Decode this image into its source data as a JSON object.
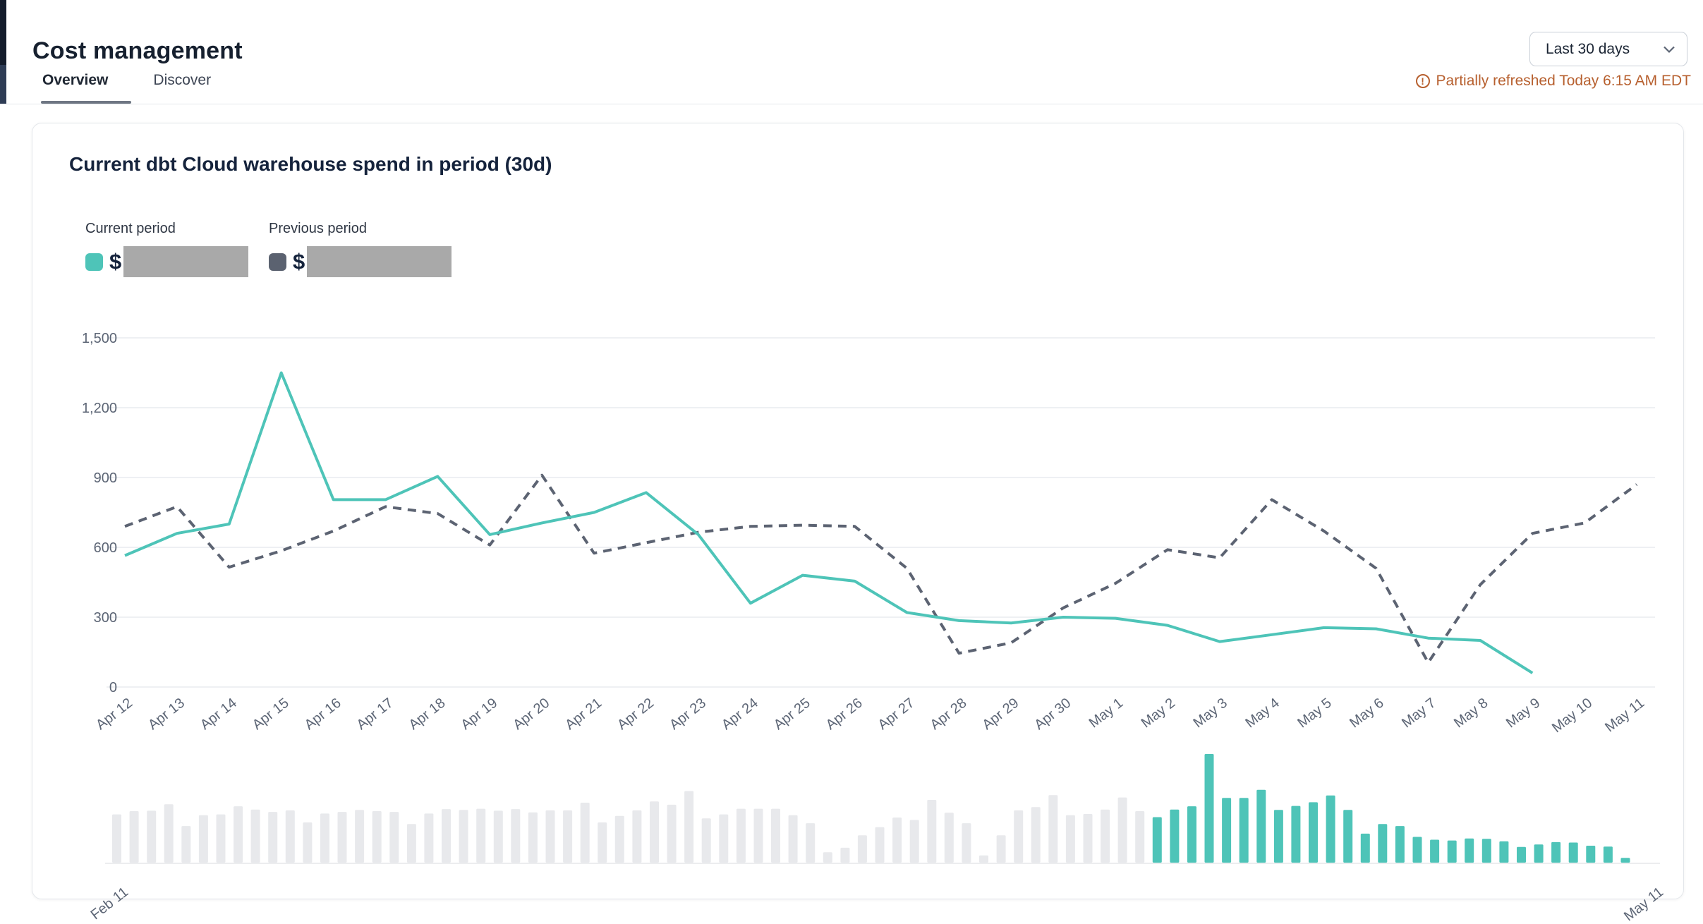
{
  "page": {
    "title": "Cost management"
  },
  "tabs": [
    {
      "label": "Overview",
      "active": true
    },
    {
      "label": "Discover",
      "active": false
    }
  ],
  "controls": {
    "range_select": {
      "value": "Last 30 days"
    },
    "refresh_notice": "Partially refreshed Today 6:15 AM EDT"
  },
  "card": {
    "title": "Current dbt Cloud warehouse spend in period (30d)",
    "legend": [
      {
        "label": "Current period",
        "value_prefix": "$",
        "value_redacted": true,
        "swatch_color": "#4EC4B8"
      },
      {
        "label": "Previous period",
        "value_prefix": "$",
        "value_redacted": true,
        "swatch_color": "#5B6270"
      }
    ]
  },
  "chart_data": {
    "type": "line",
    "title": "Current dbt Cloud warehouse spend in period (30d)",
    "x": [
      "Apr 12",
      "Apr 13",
      "Apr 14",
      "Apr 15",
      "Apr 16",
      "Apr 17",
      "Apr 18",
      "Apr 19",
      "Apr 20",
      "Apr 21",
      "Apr 22",
      "Apr 23",
      "Apr 24",
      "Apr 25",
      "Apr 26",
      "Apr 27",
      "Apr 28",
      "Apr 29",
      "Apr 30",
      "May 1",
      "May 2",
      "May 3",
      "May 4",
      "May 5",
      "May 6",
      "May 7",
      "May 8",
      "May 9",
      "May 10",
      "May 11"
    ],
    "ylim": [
      0,
      1500
    ],
    "yticks": [
      0,
      300,
      600,
      900,
      1200,
      1500
    ],
    "grid": true,
    "legend_position": "top-left",
    "series": [
      {
        "name": "Current period",
        "style": "solid",
        "color": "#4EC4B8",
        "values": [
          565,
          660,
          700,
          1350,
          805,
          805,
          905,
          655,
          705,
          750,
          835,
          655,
          360,
          480,
          455,
          320,
          285,
          275,
          300,
          295,
          265,
          195,
          225,
          255,
          250,
          210,
          200,
          60
        ]
      },
      {
        "name": "Previous period",
        "style": "dashed",
        "color": "#5C6372",
        "values": [
          690,
          775,
          515,
          585,
          670,
          775,
          745,
          610,
          910,
          575,
          620,
          665,
          690,
          695,
          690,
          510,
          145,
          190,
          340,
          445,
          590,
          555,
          805,
          670,
          510,
          105,
          440,
          660,
          705,
          870
        ]
      }
    ],
    "minimap": {
      "type": "bar",
      "start_label": "Feb 11",
      "end_label": "May 11",
      "value_max": 1350,
      "unselected_color": "#E8E9EC",
      "selected_color": "#4EC4B8",
      "unselected_values": [
        600,
        640,
        645,
        725,
        455,
        590,
        600,
        700,
        660,
        630,
        650,
        500,
        610,
        630,
        655,
        640,
        630,
        480,
        610,
        665,
        655,
        670,
        645,
        665,
        625,
        650,
        650,
        745,
        500,
        580,
        650,
        760,
        720,
        890,
        550,
        600,
        670,
        670,
        670,
        590,
        490,
        130,
        185,
        340,
        440,
        560,
        530,
        780,
        620,
        490,
        90,
        340,
        650,
        690,
        840,
        590,
        605,
        660,
        810,
        640
      ],
      "selected_values": [
        565,
        660,
        700,
        1350,
        805,
        805,
        905,
        655,
        705,
        750,
        835,
        655,
        360,
        480,
        455,
        320,
        285,
        275,
        300,
        295,
        265,
        195,
        225,
        255,
        250,
        210,
        200,
        60
      ],
      "trailing_empty_slots": 2
    }
  },
  "colors": {
    "accent_teal": "#4EC4B8",
    "slate_dashed": "#5C6372",
    "navy_text": "#16202F",
    "tick_text": "#5C6575",
    "warning_orange": "#B7602F",
    "redacted_gray": "#A9A9A9",
    "gridline": "#EEF0F3",
    "card_border": "#E4E7EB"
  }
}
